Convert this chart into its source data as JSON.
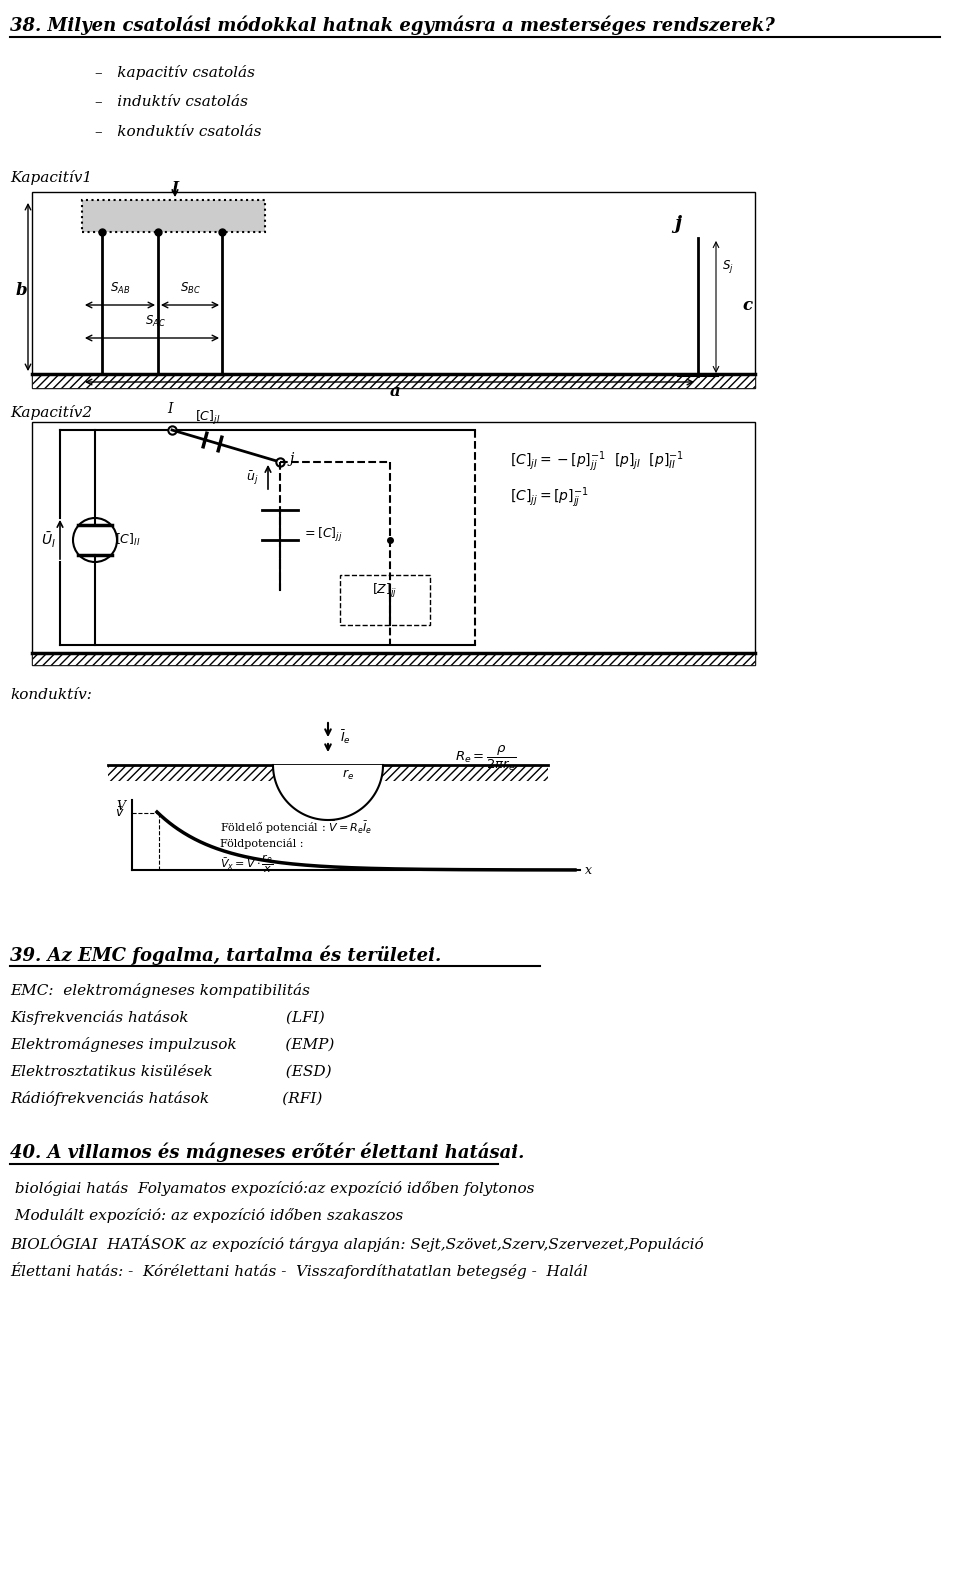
{
  "bg_color": "#ffffff",
  "title1": "38. Milyen csatolási módokkal hatnak egymásra a mesterséges rendszerek?",
  "bullet_items": [
    "–   kapacitív csatolás",
    "–   induktív csatolás",
    "–   konduktív csatolás"
  ],
  "kapacitiv1_label": "Kapacitív1",
  "kapacitiv2_label": "Kapacitív2",
  "konduktiv_label": "konduktív:",
  "section39_title": "39. Az EMC fogalma, tartalma és területei.",
  "emc_line0": "EMC:  elektromágneses kompatibilitás",
  "emc_line1": "Kisfrekvenciás hatások                    (LFI)",
  "emc_line2": "Elektromágneses impulzusok          (EMP)",
  "emc_line3": "Elektrosztatikus kisülések               (ESD)",
  "emc_line4": "Rádiófrekvenciás hatások               (RFI)",
  "section40_title": "40. A villamos és mágneses erőtér élettani hatásai.",
  "bio_line0": " biológiai hatás  Folyamatos expozíció:az expozíció időben folytonos",
  "bio_line1": " Modulált expozíció: az expozíció időben szakaszos",
  "bio_line2": "BIOLÓGIAI  HATÁSOK az expozíció tárgya alapján: Sejt,Szövet,Szerv,Szervezet,Populáció",
  "bio_line3": "Élettani hatás: -  Kórélettani hatás -  Visszafordíthatatlan betegség -  Halál",
  "title_fontsize": 13,
  "body_fontsize": 11,
  "small_fontsize": 9
}
